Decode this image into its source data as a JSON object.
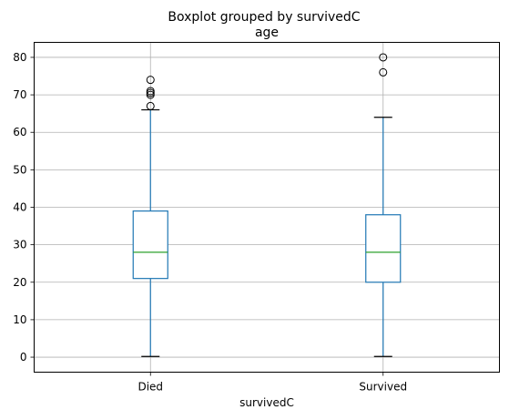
{
  "chart_data": {
    "type": "boxplot",
    "suptitle": "Boxplot grouped by survivedC",
    "title": "age",
    "xlabel": "survivedC",
    "ylabel": "",
    "ylim": [
      -4,
      84
    ],
    "yticks": [
      0,
      10,
      20,
      30,
      40,
      50,
      60,
      70,
      80
    ],
    "grid": true,
    "colors": {
      "box": "#1f77b4",
      "median": "#2ca02c",
      "whisker": "#1f77b4",
      "cap": "#000000",
      "grid": "#b0b0b0"
    },
    "categories": [
      "Died",
      "Survived"
    ],
    "boxes": [
      {
        "category": "Died",
        "whisker_low": 0.2,
        "q1": 21,
        "median": 28,
        "q3": 39,
        "whisker_high": 66,
        "fliers": [
          67,
          70,
          70.5,
          71,
          74
        ]
      },
      {
        "category": "Survived",
        "whisker_low": 0.2,
        "q1": 20,
        "median": 28,
        "q3": 38,
        "whisker_high": 64,
        "fliers": [
          76,
          80
        ]
      }
    ]
  }
}
